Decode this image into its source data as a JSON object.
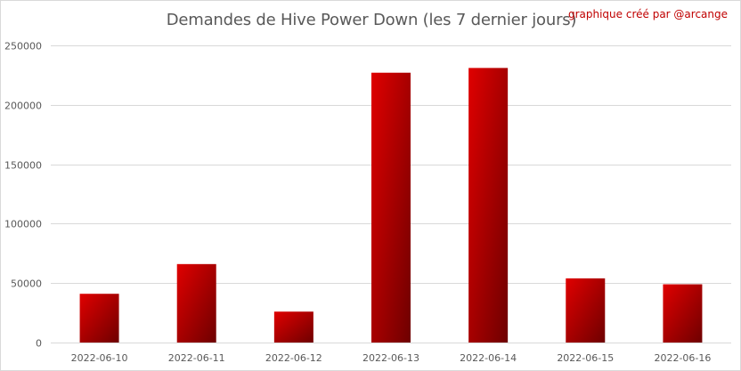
{
  "chart_data": {
    "type": "bar",
    "title": "Demandes de Hive Power Down (les 7 dernier jours)",
    "annotation": "graphique créé par @arcange",
    "categories": [
      "2022-06-10",
      "2022-06-11",
      "2022-06-12",
      "2022-06-13",
      "2022-06-14",
      "2022-06-15",
      "2022-06-16"
    ],
    "values": [
      41000,
      66000,
      26000,
      227000,
      231000,
      54000,
      49000
    ],
    "ylim": [
      0,
      250000
    ],
    "yticks": [
      0,
      50000,
      100000,
      150000,
      200000,
      250000
    ],
    "ytick_labels": [
      "0",
      "50000",
      "100000",
      "150000",
      "200000",
      "250000"
    ],
    "grid": true,
    "legend": false,
    "colors": {
      "bar_light": "#e00000",
      "bar_dark": "#6e0000",
      "grid": "#d9d9d9",
      "title": "#595959",
      "annotation": "#c00000"
    }
  }
}
